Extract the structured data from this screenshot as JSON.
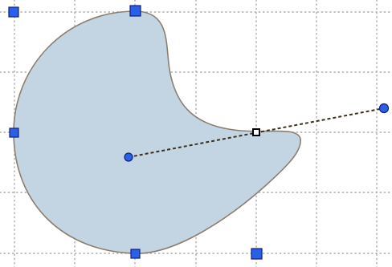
{
  "canvas": {
    "background_color": "#ffffff",
    "grid_color": "#a9a9a9",
    "grid_style": "dotted"
  },
  "shape": {
    "kind": "closed-bezier-curve",
    "fill_color": "#c3d5e3",
    "outline_color": "#8c7f6f"
  },
  "handles": {
    "resize_color": "#2a5fe8",
    "resize_outline_color": "#10207a",
    "control_point_color": "#ffffff",
    "control_line_color": "#3c2f1e"
  }
}
